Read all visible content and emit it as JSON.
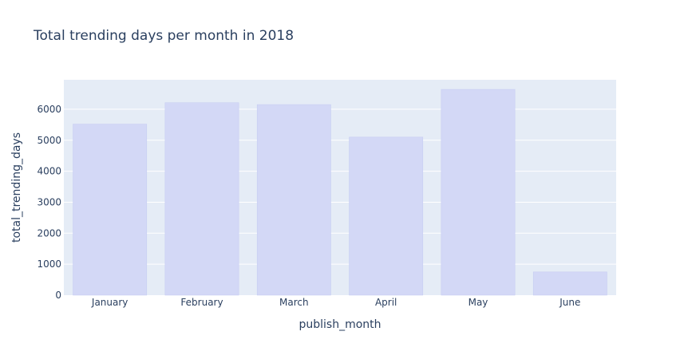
{
  "chart_data": {
    "type": "bar",
    "title": "Total trending days per month in 2018",
    "xlabel": "publish_month",
    "ylabel": "total_trending_days",
    "categories": [
      "January",
      "February",
      "March",
      "April",
      "May",
      "June"
    ],
    "values": [
      5520,
      6210,
      6150,
      5100,
      6640,
      750
    ],
    "ylim": [
      0,
      6950
    ],
    "yticks": [
      0,
      1000,
      2000,
      3000,
      4000,
      5000,
      6000
    ],
    "grid": true,
    "legend": "none",
    "colors": {
      "plot_bg": "#e5ecf6",
      "bar_fill": "#d3d8f6",
      "bar_line": "#c4caf2",
      "grid": "#ffffff",
      "text": "#2a3f5f"
    }
  }
}
